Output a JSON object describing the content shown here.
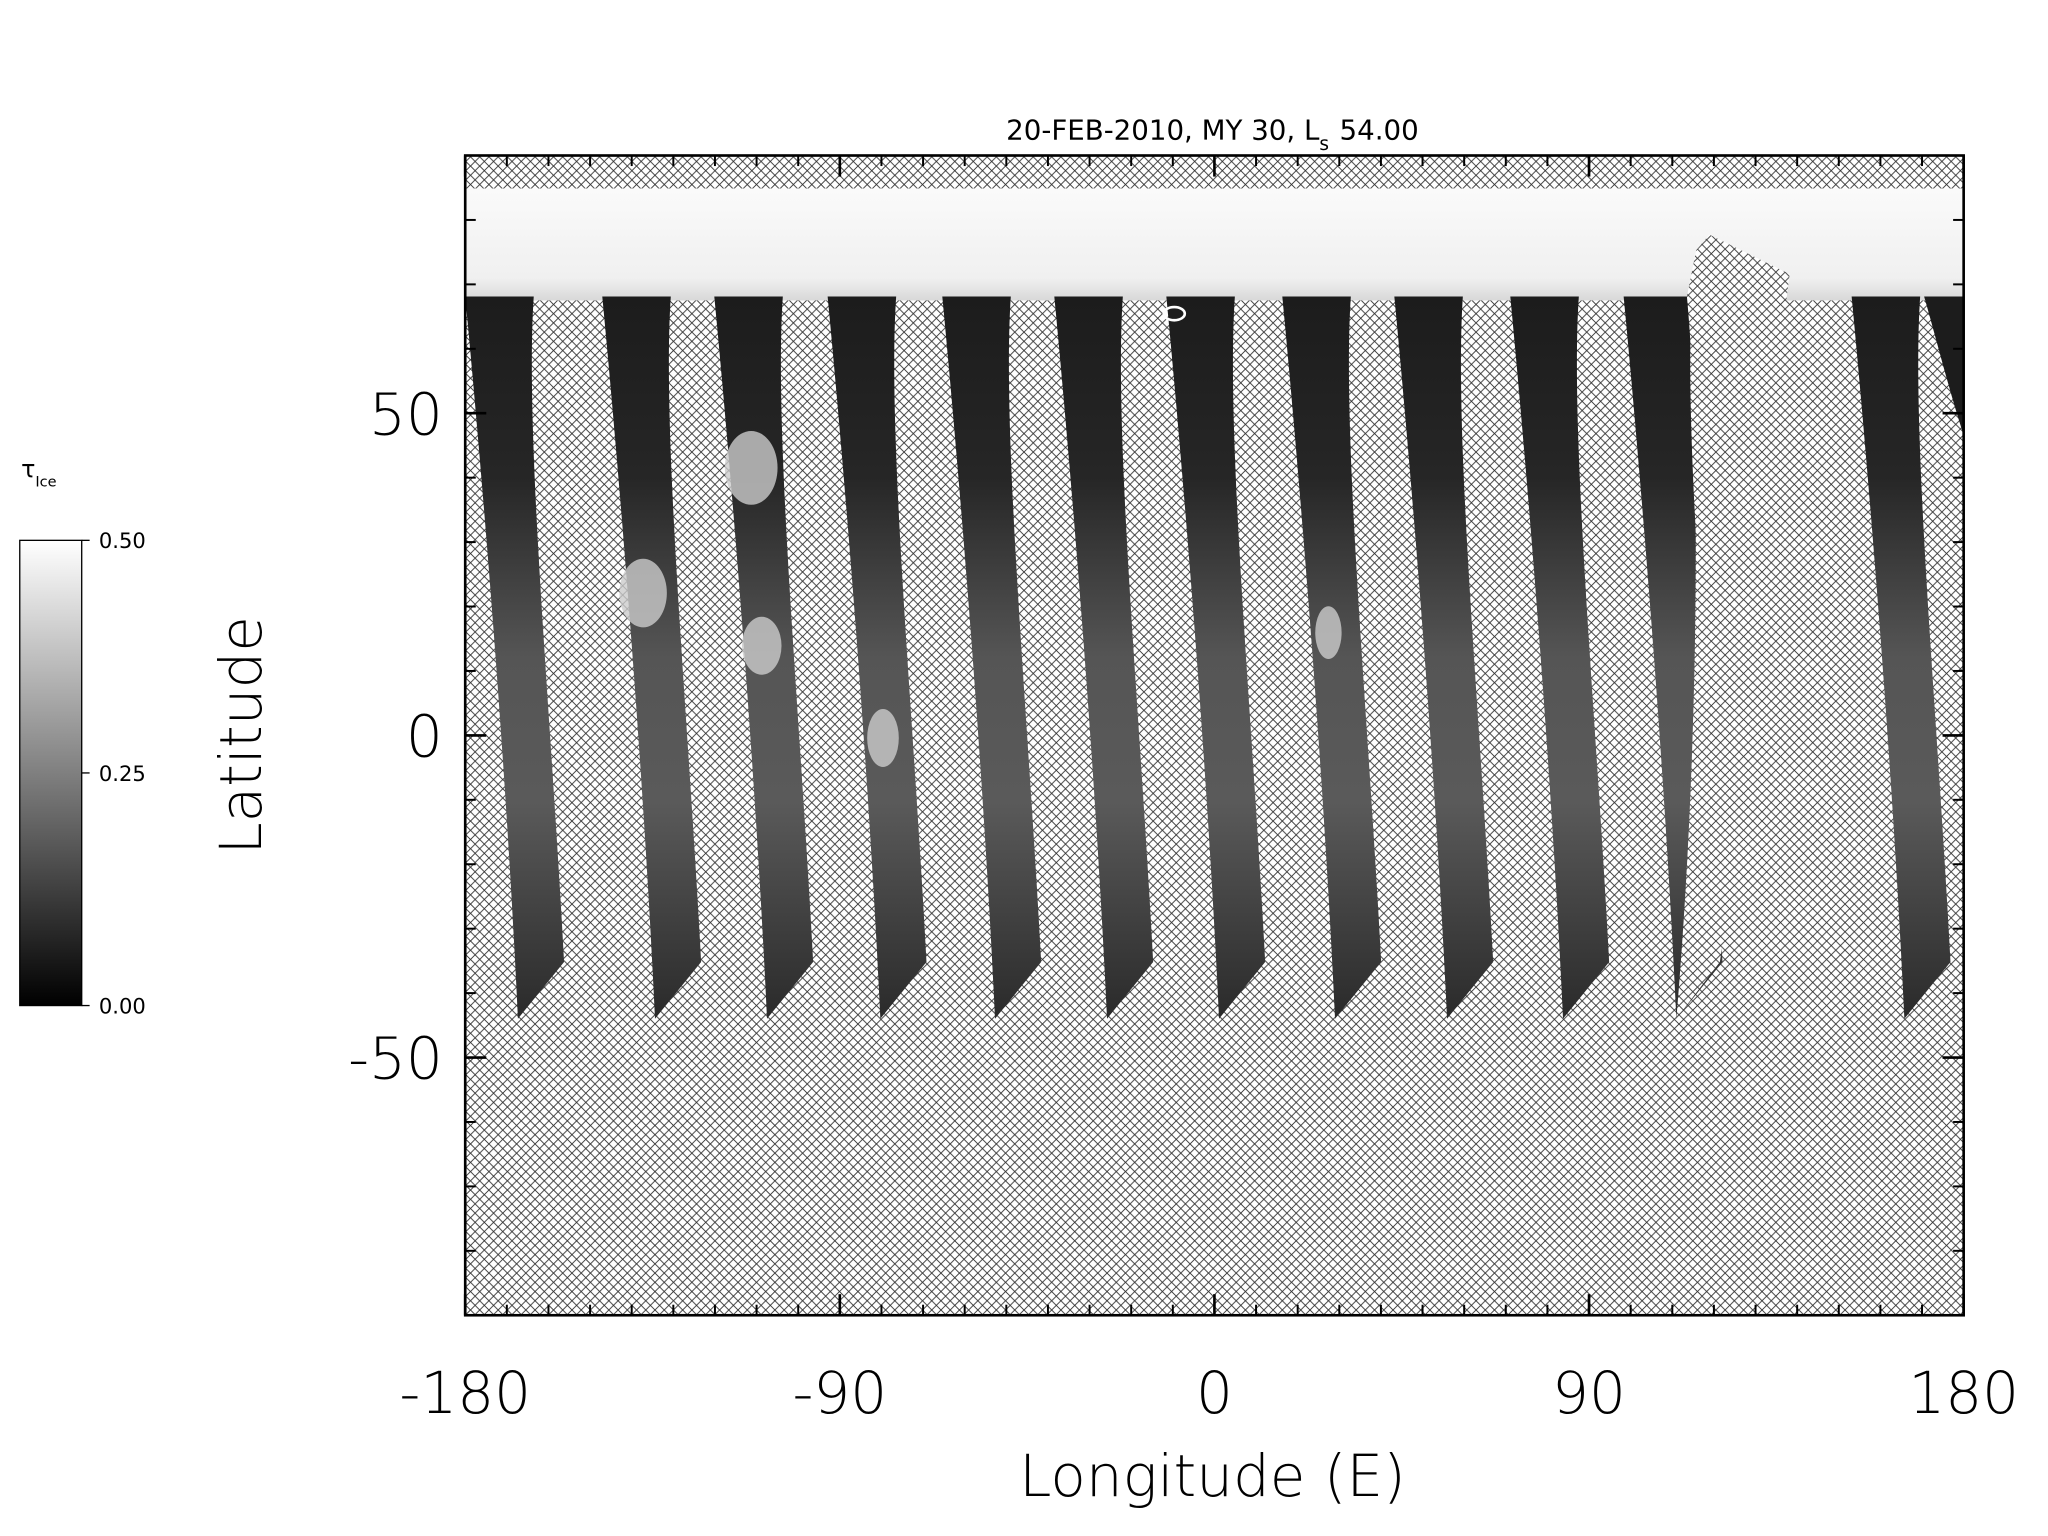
{
  "chart_data": {
    "type": "map",
    "title": "20-FEB-2010, MY 30,  L",
    "title_subscript": "s",
    "title_end": "54.00",
    "x_label": "Longitude (E)",
    "y_label": "Latitude",
    "xlim": [
      -180,
      180
    ],
    "xticks": [
      -180,
      -90,
      0,
      90,
      180
    ],
    "ylim": [
      -90,
      90
    ],
    "yticks": [
      -50,
      0,
      50
    ],
    "x_minor_step": 10,
    "y_minor_step": 10,
    "colorbar": {
      "label": "τ",
      "label_subscript": "Ice",
      "lim": [
        0,
        0.5
      ],
      "ticks": [
        {
          "value": 0,
          "label": "0.00"
        },
        {
          "value": 0.25,
          "label": "0.25"
        },
        {
          "value": 0.5,
          "label": "0.50"
        }
      ],
      "colors": [
        "#000000",
        "#ffffff"
      ]
    }
  }
}
